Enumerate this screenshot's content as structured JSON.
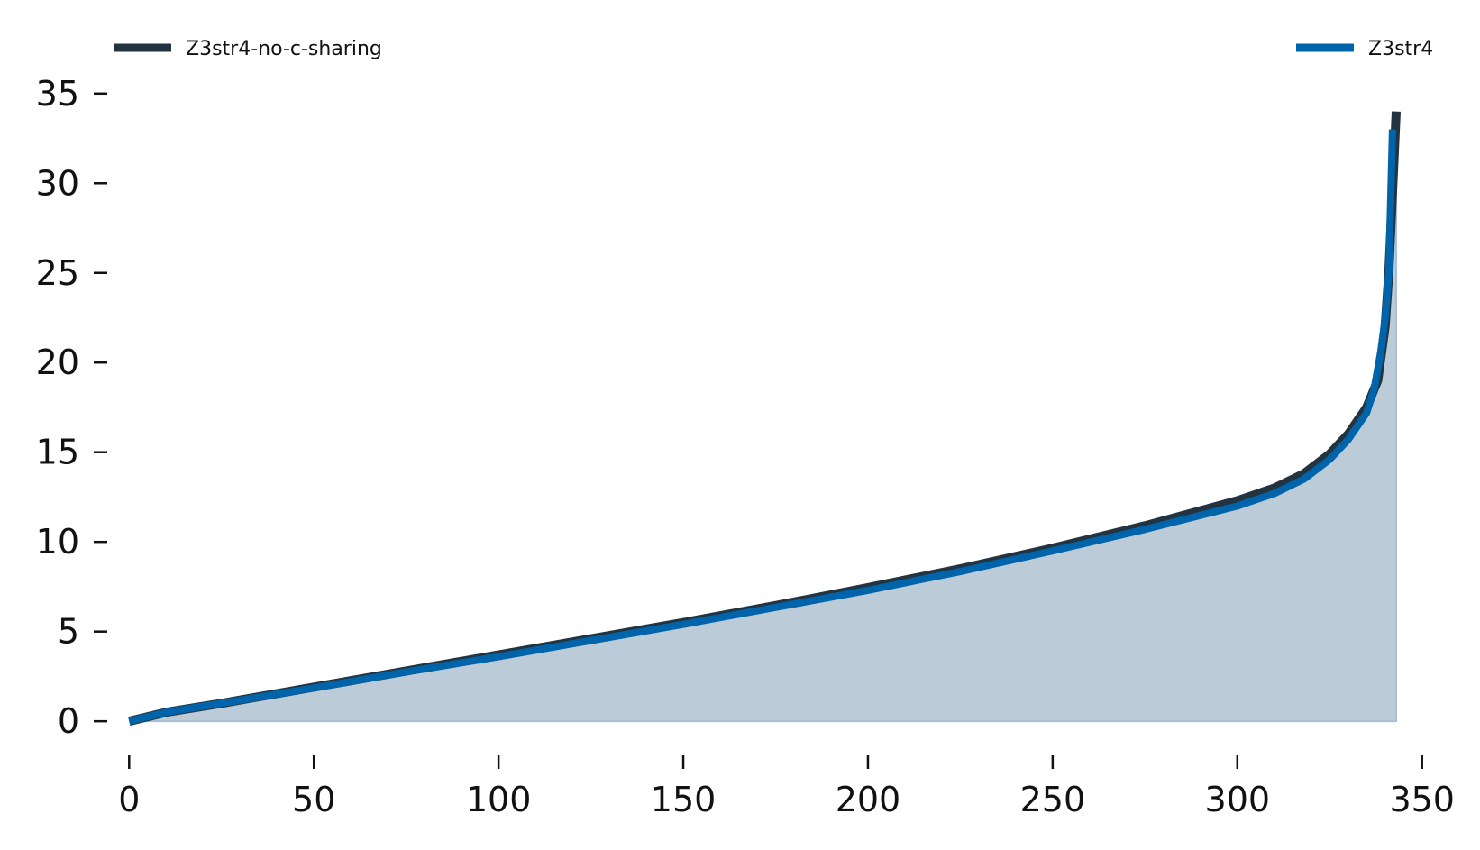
{
  "chart_data": {
    "type": "line",
    "title": "",
    "xlabel": "",
    "ylabel": "",
    "xlim": [
      -3,
      353
    ],
    "ylim": [
      -1.5,
      37
    ],
    "xticks": [
      0,
      50,
      100,
      150,
      200,
      250,
      300,
      350
    ],
    "yticks": [
      0,
      5,
      10,
      15,
      20,
      25,
      30,
      35
    ],
    "xtick_labels": [
      "0",
      "50",
      "100",
      "150",
      "200",
      "250",
      "300",
      "350"
    ],
    "ytick_labels": [
      "0",
      "5",
      "10",
      "15",
      "20",
      "25",
      "30",
      "35"
    ],
    "grid": false,
    "legend": {
      "placement": "top",
      "entries": [
        "Z3str4-no-c-sharing",
        "Z3str4"
      ]
    },
    "fill_under_series": "Z3str4-no-c-sharing",
    "fill_color": "#bccbd8",
    "series": [
      {
        "name": "Z3str4-no-c-sharing",
        "color": "#243340",
        "x": [
          0,
          10,
          25,
          50,
          75,
          100,
          125,
          150,
          175,
          200,
          225,
          250,
          275,
          300,
          310,
          318,
          325,
          330,
          335,
          338,
          340,
          341,
          342,
          343
        ],
        "y": [
          0,
          0.5,
          1.0,
          1.9,
          2.8,
          3.7,
          4.6,
          5.5,
          6.45,
          7.45,
          8.5,
          9.65,
          10.9,
          12.3,
          13.0,
          13.8,
          14.9,
          16.0,
          17.5,
          19.0,
          22.0,
          25.0,
          29.5,
          34.0
        ]
      },
      {
        "name": "Z3str4",
        "color": "#0064aa",
        "x": [
          0,
          10,
          25,
          50,
          75,
          100,
          125,
          150,
          175,
          200,
          225,
          250,
          275,
          300,
          310,
          318,
          325,
          330,
          335,
          337,
          339,
          340,
          341,
          342
        ],
        "y": [
          0,
          0.5,
          1.0,
          1.85,
          2.75,
          3.6,
          4.5,
          5.4,
          6.35,
          7.3,
          8.35,
          9.5,
          10.7,
          12.0,
          12.7,
          13.5,
          14.6,
          15.7,
          17.2,
          18.5,
          20.8,
          22.5,
          25.0,
          33.0
        ]
      }
    ]
  }
}
